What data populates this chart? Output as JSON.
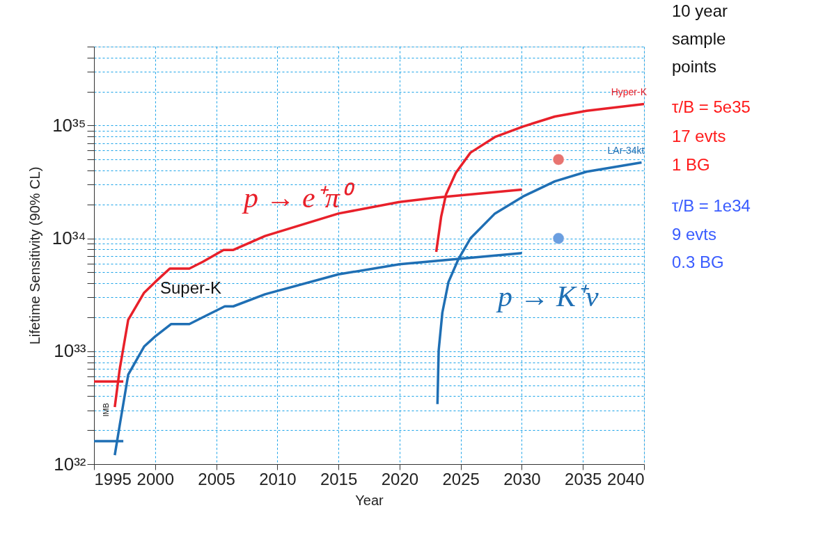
{
  "chart_data": {
    "type": "line",
    "xlabel": "Year",
    "ylabel": "Lifetime Sensitivity (90% CL)",
    "xlim": [
      1995,
      2040
    ],
    "xticks": [
      1995,
      2000,
      2005,
      2010,
      2015,
      2020,
      2025,
      2030,
      2035,
      2040
    ],
    "ylim": [
      1e+32,
      5e+35
    ],
    "log": true,
    "grid": true,
    "yticks": [
      {
        "value": 1e+32,
        "label": "10³²"
      },
      {
        "value": 2e+32,
        "label": null
      },
      {
        "value": 3e+32,
        "label": null
      },
      {
        "value": 4e+32,
        "label": null
      },
      {
        "value": 5e+32,
        "label": null
      },
      {
        "value": 6e+32,
        "label": null
      },
      {
        "value": 7e+32,
        "label": null
      },
      {
        "value": 8e+32,
        "label": null
      },
      {
        "value": 9e+32,
        "label": null
      },
      {
        "value": 1e+33,
        "label": "10³³"
      },
      {
        "value": 2e+33,
        "label": null
      },
      {
        "value": 3e+33,
        "label": null
      },
      {
        "value": 4e+33,
        "label": null
      },
      {
        "value": 5e+33,
        "label": null
      },
      {
        "value": 6e+33,
        "label": null
      },
      {
        "value": 7e+33,
        "label": null
      },
      {
        "value": 8e+33,
        "label": null
      },
      {
        "value": 9e+33,
        "label": null
      },
      {
        "value": 1e+34,
        "label": "10³⁴"
      },
      {
        "value": 2e+34,
        "label": null
      },
      {
        "value": 3e+34,
        "label": null
      },
      {
        "value": 4e+34,
        "label": null
      },
      {
        "value": 5e+34,
        "label": null
      },
      {
        "value": 6e+34,
        "label": null
      },
      {
        "value": 7e+34,
        "label": null
      },
      {
        "value": 8e+34,
        "label": null
      },
      {
        "value": 9e+34,
        "label": null
      },
      {
        "value": 1e+35,
        "label": "10³⁵"
      },
      {
        "value": 2e+35,
        "label": null
      },
      {
        "value": 3e+35,
        "label": null
      },
      {
        "value": 4e+35,
        "label": null
      },
      {
        "value": 5e+35,
        "label": null
      }
    ],
    "series": [
      {
        "color": "#e8202a",
        "x": [
          1996.7,
          1997.1,
          1997.8,
          1999.1,
          2000,
          2001.2,
          2002.8,
          2003.9,
          2005.6,
          2006.4,
          2009,
          2015,
          2020,
          2023,
          2030
        ],
        "values": [
          3.2e+32,
          6.9e+32,
          1.9e+33,
          3.3e+33,
          4.1e+33,
          5.4e+33,
          5.4e+33,
          6.2e+33,
          7.9e+33,
          7.9e+33,
          1.05e+34,
          1.66e+34,
          2.1e+34,
          2.3e+34,
          2.7e+34
        ]
      },
      {
        "color": "#1f6fb4",
        "x": [
          1996.7,
          1997.1,
          1997.8,
          1999.1,
          2000,
          2001.3,
          2002.8,
          2003.9,
          2005.7,
          2006.4,
          2009,
          2015,
          2020,
          2025,
          2030
        ],
        "values": [
          1.2e+32,
          2.2e+32,
          6.2e+32,
          1.1e+33,
          1.35e+33,
          1.74e+33,
          1.74e+33,
          2e+33,
          2.5e+33,
          2.5e+33,
          3.2e+33,
          4.8e+33,
          5.9e+33,
          6.6e+33,
          7.4e+33
        ]
      },
      {
        "name": "Hyper-K",
        "color": "#e8202a",
        "x": [
          2023.0,
          2023.4,
          2023.8,
          2024.6,
          2025.8,
          2027.8,
          2030.1,
          2032.7,
          2035.3,
          2040
        ],
        "values": [
          7.6e+33,
          1.55e+34,
          2.45e+34,
          3.8e+34,
          5.75e+34,
          7.9e+34,
          9.8e+34,
          1.2e+35,
          1.35e+35,
          1.55e+35
        ]
      },
      {
        "name": "LAr-34kt",
        "color": "#1f6fb4",
        "x": [
          2023.1,
          2023.2,
          2023.5,
          2024,
          2024.8,
          2025.8,
          2027.8,
          2030.1,
          2032.7,
          2035.3,
          2039.8
        ],
        "values": [
          3.4e+32,
          1.02e+33,
          2.2e+33,
          4.1e+33,
          6.5e+33,
          1e+34,
          1.66e+34,
          2.35e+34,
          3.2e+34,
          3.9e+34,
          4.7e+34
        ]
      },
      {
        "color": "#e8202a",
        "x": [
          1995,
          1997.4
        ],
        "values": [
          5.4e+32,
          5.4e+32
        ]
      },
      {
        "color": "#1f6fb4",
        "x": [
          1995,
          1997.4
        ],
        "values": [
          1.6e+32,
          1.6e+32
        ]
      },
      {
        "type": "scatter",
        "color": "#e87470",
        "x": [
          2033
        ],
        "values": [
          5e+34
        ]
      },
      {
        "type": "scatter",
        "color": "#6a9ee0",
        "x": [
          2033
        ],
        "values": [
          1e+34
        ]
      }
    ],
    "annotations": [
      "10 year\nsample\npoints",
      "τ/B = 5e35",
      "17 evts",
      "1 BG",
      "τ/B = 1e34",
      "9 evts",
      "0.3 BG",
      "Super-K",
      "IMB",
      "p → e⁺π⁰",
      "p → K⁺ν"
    ]
  }
}
